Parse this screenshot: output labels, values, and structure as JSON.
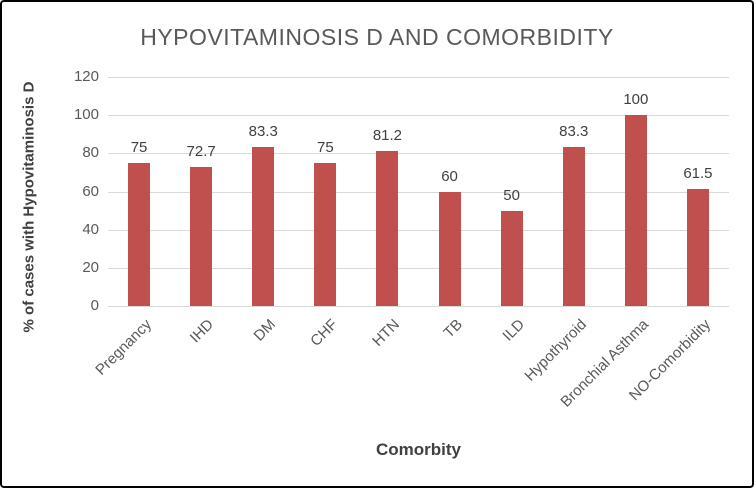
{
  "window": {
    "background": "#ffffff",
    "border_color": "#000000"
  },
  "chart_data": {
    "type": "bar",
    "title": "HYPOVITAMINOSIS D AND COMORBIDITY",
    "xlabel": "Comorbity",
    "ylabel": "% of cases with Hypovitaminosis D",
    "categories": [
      "Pregnancy",
      "IHD",
      "DM",
      "CHF",
      "HTN",
      "TB",
      "ILD",
      "Hypothyroid",
      "Bronchial Asthma",
      "NO-Comorbidity"
    ],
    "values": [
      75,
      72.7,
      83.3,
      75,
      81.2,
      60,
      50,
      83.3,
      100,
      61.5
    ],
    "data_labels": [
      "75",
      "72.7",
      "83.3",
      "75",
      "81.2",
      "60",
      "50",
      "83.3",
      "100",
      "61.5"
    ],
    "y_ticks": [
      0,
      20,
      40,
      60,
      80,
      100,
      120
    ],
    "ylim": [
      0,
      120
    ],
    "grid": true,
    "legend": "none",
    "styles": {
      "bar_color": "#C0504D",
      "gridline_color": "#D9D9D9",
      "title_color": "#595959",
      "tick_label_color": "#595959",
      "axis_title_color": "#404040",
      "value_label_color": "#404040"
    }
  }
}
